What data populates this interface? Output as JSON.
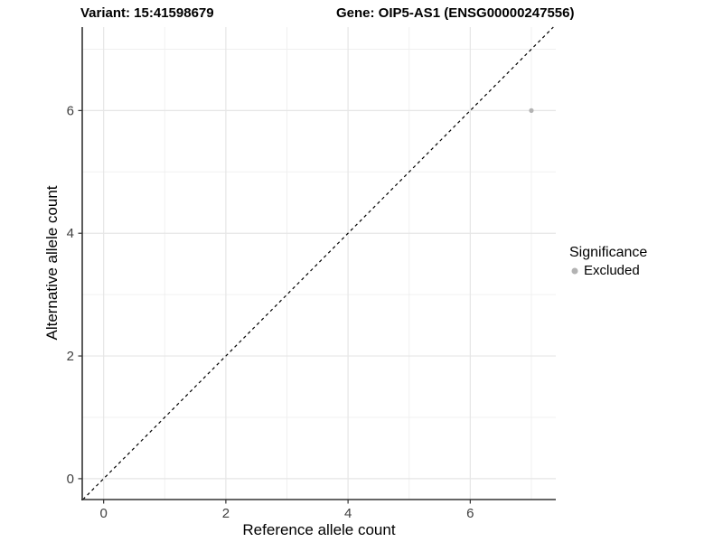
{
  "titles": {
    "variant": "Variant: 15:41598679",
    "gene": "Gene: OIP5-AS1 (ENSG00000247556)"
  },
  "chart_data": {
    "type": "scatter",
    "xlabel": "Reference allele count",
    "ylabel": "Alternative allele count",
    "xlim": [
      -0.35,
      7.4
    ],
    "ylim": [
      -0.34,
      7.36
    ],
    "x_ticks": [
      0,
      2,
      4,
      6
    ],
    "y_ticks": [
      0,
      2,
      4,
      6
    ],
    "x_minor_gridlines": [
      1,
      3,
      5,
      7
    ],
    "y_minor_gridlines": [
      1,
      3,
      5,
      7
    ],
    "grid": "major and minor gridlines, light gray on white panel",
    "identity_line": {
      "style": "dashed",
      "slope": 1,
      "intercept": 0,
      "color": "#000000"
    },
    "series": [
      {
        "name": "Excluded",
        "color": "#b3b3b3",
        "points": [
          {
            "x": 7,
            "y": 6
          }
        ]
      }
    ],
    "legend": {
      "title": "Significance",
      "position": "right-middle",
      "items": [
        {
          "label": "Excluded",
          "color": "#b3b3b3"
        }
      ]
    },
    "colors": {
      "background": "#ffffff",
      "grid_major": "#e6e6e6",
      "grid_minor": "#f0f0f0",
      "axis_line": "#333333",
      "tick_mark": "#333333",
      "tick_label": "#404040"
    }
  }
}
